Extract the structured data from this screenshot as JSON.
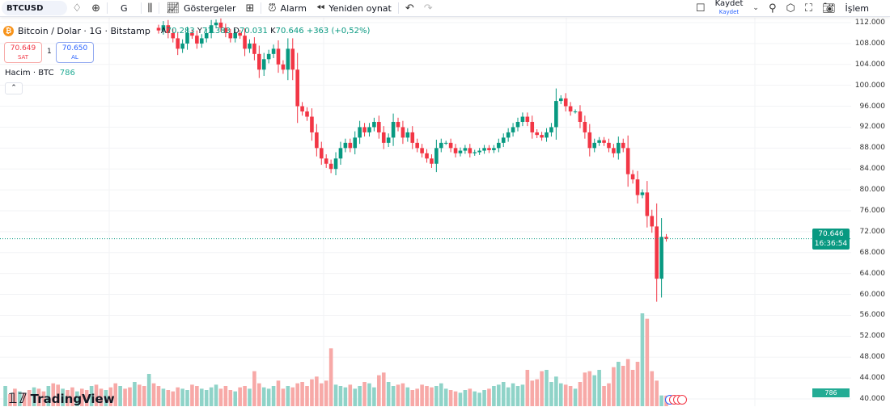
{
  "toolbar": {
    "symbol": "BTCUSD",
    "interval": "G",
    "indicators": "Göstergeler",
    "alarm": "Alarm",
    "replay": "Yeniden oynat",
    "save": "Kaydet",
    "save_sub": "Kaydet",
    "trade": "İşlem"
  },
  "legend": {
    "title": "Bitcoin / Dolar · 1G · Bitstamp",
    "open_label": "A",
    "open": "70.283",
    "high_label": "Y",
    "high": "71.383",
    "low_label": "D",
    "low": "70.031",
    "close_label": "K",
    "close": "70.646",
    "change": "+363 (+0,52%)"
  },
  "sell": {
    "price": "70.649",
    "label": "SAT"
  },
  "spread": "1",
  "buy": {
    "price": "70.650",
    "label": "AL"
  },
  "volume": {
    "label": "Hacim · BTC",
    "value": "786"
  },
  "price_tag": {
    "price": "70.646",
    "countdown": "16:36:54"
  },
  "volume_tag": "786",
  "logo": "TradingView",
  "colors": {
    "up": "#089981",
    "down": "#f23645",
    "vol_up": "#8fd3c8",
    "vol_down": "#f7a9a7"
  },
  "chart_data": {
    "type": "candlestick",
    "y_ticks": [
      "112.000",
      "108.000",
      "104.000",
      "100.000",
      "96.000",
      "92.000",
      "88.000",
      "84.000",
      "80.000",
      "76.000",
      "72.000",
      "68.000",
      "64.000",
      "60.000",
      "56.000",
      "52.000",
      "48.000",
      "44.000",
      "40.000"
    ],
    "ylim": [
      40000,
      112000
    ],
    "last_price": 70646,
    "closes": [
      110500,
      111500,
      110000,
      109000,
      107000,
      108000,
      110000,
      109500,
      108000,
      109000,
      110000,
      111500,
      112000,
      111000,
      110000,
      109000,
      110000,
      109500,
      107000,
      108000,
      106000,
      103000,
      105000,
      106000,
      107000,
      104000,
      103000,
      107000,
      103000,
      96000,
      95000,
      94000,
      91000,
      88000,
      86000,
      85000,
      84000,
      86000,
      88000,
      89000,
      88000,
      90000,
      92000,
      91000,
      92000,
      93000,
      91000,
      89000,
      90000,
      93000,
      92000,
      90000,
      91000,
      89000,
      88000,
      87000,
      86000,
      85000,
      88000,
      89000,
      89000,
      88000,
      87000,
      87500,
      88000,
      87000,
      87200,
      87500,
      88000,
      87600,
      88000,
      89000,
      90000,
      91000,
      92000,
      93000,
      94000,
      93000,
      91000,
      90500,
      90000,
      91000,
      92000,
      97000,
      97500,
      96000,
      95000,
      95000,
      93000,
      91000,
      88000,
      89000,
      89500,
      89000,
      88000,
      87000,
      89000,
      88000,
      83000,
      82000,
      79000,
      79500,
      75000,
      73000,
      63000,
      71000,
      70646
    ],
    "volumes_before": [
      1500,
      900,
      1300,
      1100,
      1000,
      1200,
      1400,
      1300,
      1100,
      1500,
      1700,
      1600,
      1300,
      1200,
      1400,
      1100,
      1300,
      1200,
      1500,
      1600,
      1300,
      1200,
      1400,
      1700,
      1500,
      1300,
      1400,
      1800,
      1600,
      1500,
      2400,
      1700
    ],
    "volumes": [
      1500,
      1300,
      1200,
      1100,
      1400,
      1300,
      1200,
      1600,
      1500,
      1300,
      1200,
      1400,
      1600,
      1300,
      1500,
      1200,
      1100,
      1400,
      1500,
      1300,
      2600,
      1700,
      1400,
      1300,
      1500,
      1900,
      1300,
      1500,
      1400,
      1700,
      1800,
      1500,
      2000,
      2200,
      1700,
      1900,
      4300,
      1600,
      1500,
      1400,
      1600,
      1300,
      1500,
      1800,
      1700,
      1400,
      2300,
      2500,
      1800,
      1500,
      1600,
      1700,
      1400,
      1200,
      1300,
      1600,
      1500,
      1400,
      1500,
      1700,
      1300,
      1200,
      1100,
      1000,
      1200,
      1300,
      1100,
      1000,
      1200,
      1300,
      1500,
      1600,
      1800,
      1400,
      1700,
      1500,
      1600,
      2700,
      1900,
      2000,
      2600,
      2700,
      1800,
      2200,
      1700,
      1600,
      1500,
      1300,
      1800,
      2500,
      2600,
      2300,
      2700,
      1500,
      1700,
      2900,
      3300,
      3000,
      3500,
      2700,
      3300,
      6900,
      6500,
      2600,
      1900,
      800,
      786
    ]
  }
}
